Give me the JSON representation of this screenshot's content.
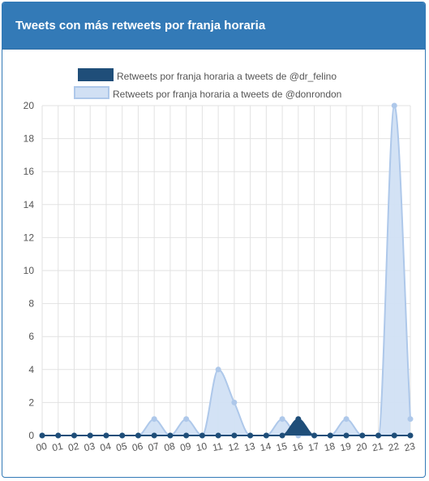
{
  "panel": {
    "title": "Tweets con más retweets por franja horaria"
  },
  "chart_data": {
    "type": "area",
    "title": "",
    "xlabel": "",
    "ylabel": "",
    "categories": [
      "00",
      "01",
      "02",
      "03",
      "04",
      "05",
      "06",
      "07",
      "08",
      "09",
      "10",
      "11",
      "12",
      "13",
      "14",
      "15",
      "16",
      "17",
      "18",
      "19",
      "20",
      "21",
      "22",
      "23"
    ],
    "ylim": [
      0,
      20
    ],
    "yticks": [
      0,
      2,
      4,
      6,
      8,
      10,
      12,
      14,
      16,
      18,
      20
    ],
    "grid": true,
    "legend_position": "top",
    "series": [
      {
        "name": "Retweets por franja horaria a tweets de @dr_felino",
        "color": "#1f4e79",
        "fill": "#1f4e79",
        "values": [
          0,
          0,
          0,
          0,
          0,
          0,
          0,
          0,
          0,
          0,
          0,
          0,
          0,
          0,
          0,
          0,
          1,
          0,
          0,
          0,
          0,
          0,
          0,
          0
        ]
      },
      {
        "name": "Retweets por franja horaria a tweets de @donrondon",
        "color": "#aec8ea",
        "fill": "#d1e0f4",
        "values": [
          0,
          0,
          0,
          0,
          0,
          0,
          0,
          1,
          0,
          1,
          0,
          4,
          2,
          0,
          0,
          1,
          0,
          0,
          0,
          1,
          0,
          0,
          20,
          1
        ]
      }
    ]
  }
}
